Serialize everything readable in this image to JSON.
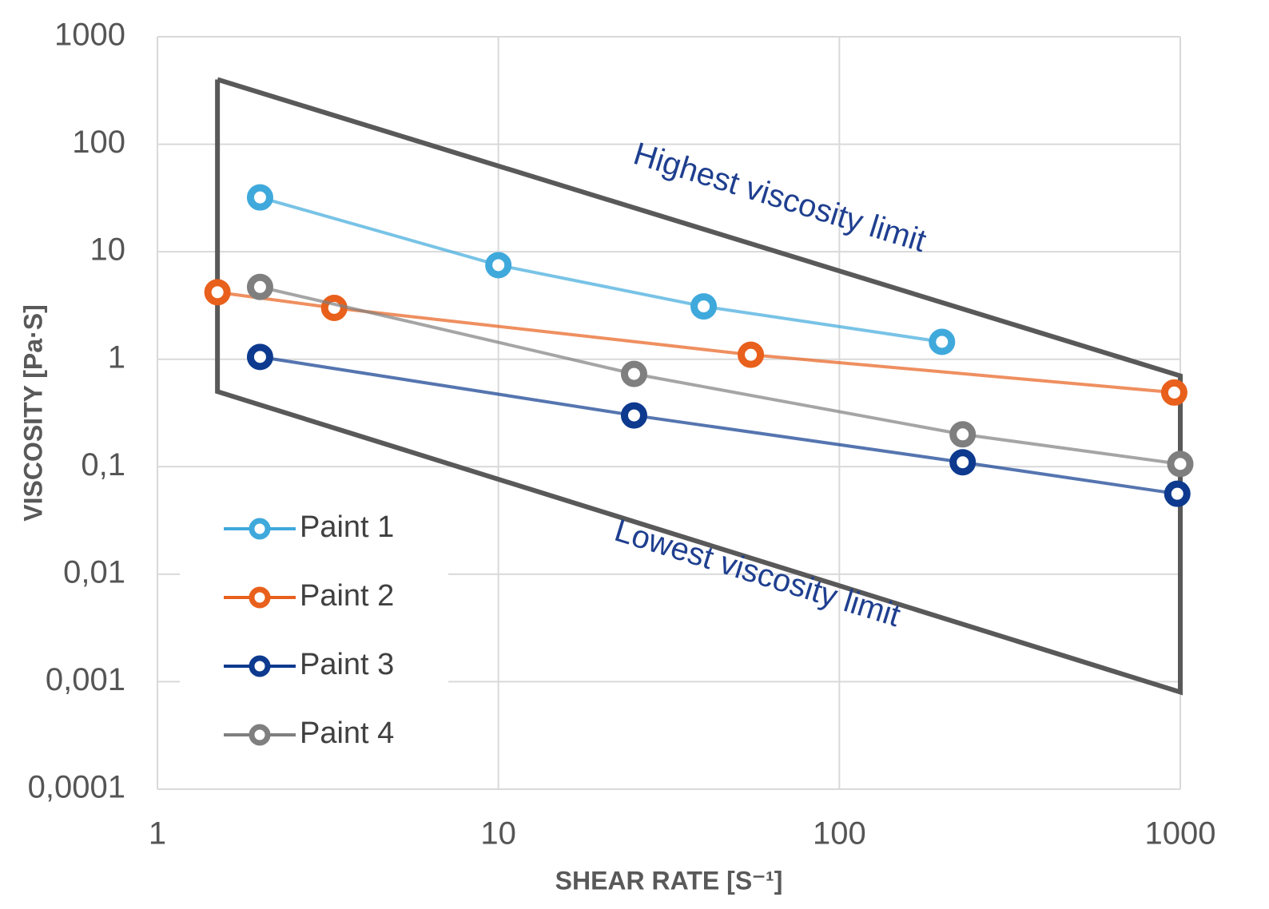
{
  "chart_data": {
    "type": "line",
    "x_label": "SHEAR RATE [S⁻¹]",
    "y_label": "VISCOSITY [Pa·S]",
    "xscale": "log",
    "yscale": "log",
    "xlim": [
      1,
      1000
    ],
    "ylim": [
      0.0001,
      1000
    ],
    "xticks": [
      1,
      10,
      100,
      1000
    ],
    "yticks": [
      1000,
      100,
      10,
      1,
      {
        "value": 0.1,
        "label": "0,1"
      },
      {
        "value": 0.01,
        "label": "0,01"
      },
      {
        "value": 0.001,
        "label": "0,001"
      },
      {
        "value": 0.0001,
        "label": "0,0001"
      }
    ],
    "grid": true,
    "legend": "lower left",
    "series": [
      {
        "name": "Paint 1",
        "color": "#3fa9dc",
        "x": [
          2,
          10,
          40,
          200
        ],
        "values": [
          32,
          7.5,
          3.1,
          1.45
        ]
      },
      {
        "name": "Paint 2",
        "color": "#e8601c",
        "x": [
          1.5,
          3.3,
          55,
          960
        ],
        "values": [
          4.2,
          3.0,
          1.1,
          0.49
        ]
      },
      {
        "name": "Paint 3",
        "color": "#0d3a8e",
        "x": [
          2,
          25,
          230,
          980
        ],
        "values": [
          1.05,
          0.3,
          0.11,
          0.056
        ]
      },
      {
        "name": "Paint 4",
        "color": "#7f7f7f",
        "x": [
          2,
          25,
          230,
          1000
        ],
        "values": [
          4.7,
          0.73,
          0.2,
          0.106
        ]
      }
    ],
    "limits": {
      "color": "#595959",
      "x": [
        1.5,
        1000,
        1000,
        1.5,
        1.5
      ],
      "values": [
        400,
        0.7,
        0.0008,
        0.5,
        400
      ]
    },
    "annotations": [
      {
        "text": "Highest viscosity limit",
        "x": 25,
        "y": 80,
        "color": "#1f3f8f"
      },
      {
        "text": "Lowest viscosity limit",
        "x": 22,
        "y": 0.025,
        "color": "#1f3f8f"
      }
    ]
  }
}
